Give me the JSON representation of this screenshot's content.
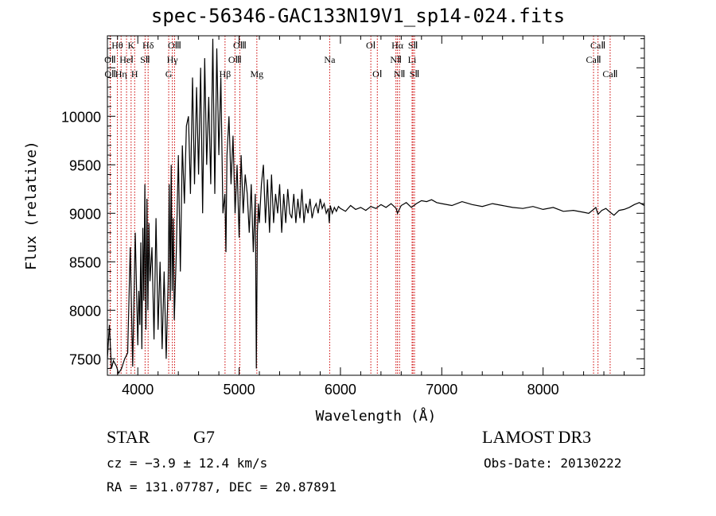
{
  "header": {
    "title": "spec-56346-GAC133N19V1_sp14-024.fits"
  },
  "info": {
    "object_type": "STAR",
    "subclass": "G7",
    "survey": "LAMOST DR3",
    "cz": "cz = −3.9 ± 12.4 km/s",
    "obs_date": "Obs-Date: 20130222",
    "radec": "RA = 131.07787, DEC =  20.87891"
  },
  "chart_data": {
    "type": "line",
    "title": "spec-56346-GAC133N19V1_sp14-024.fits",
    "xlabel": "Wavelength (Å)",
    "ylabel": "Flux (relative)",
    "xlim": [
      3700,
      9000
    ],
    "ylim": [
      7330,
      10830
    ],
    "xticks": [
      4000,
      5000,
      6000,
      7000,
      8000
    ],
    "yticks": [
      7500,
      8000,
      8500,
      9000,
      9500,
      10000
    ],
    "line_color": "#000000",
    "marker_color": "#cc0000",
    "series": [
      {
        "name": "flux",
        "x": [
          3700,
          3720,
          3740,
          3760,
          3790,
          3810,
          3840,
          3870,
          3900,
          3925,
          3950,
          3975,
          4000,
          4010,
          4020,
          4030,
          4040,
          4050,
          4060,
          4070,
          4080,
          4090,
          4100,
          4110,
          4120,
          4140,
          4160,
          4180,
          4200,
          4220,
          4240,
          4260,
          4280,
          4300,
          4310,
          4320,
          4330,
          4340,
          4350,
          4360,
          4380,
          4400,
          4420,
          4440,
          4460,
          4480,
          4500,
          4520,
          4540,
          4560,
          4580,
          4600,
          4620,
          4640,
          4660,
          4680,
          4700,
          4720,
          4740,
          4760,
          4780,
          4800,
          4820,
          4840,
          4860,
          4870,
          4880,
          4900,
          4920,
          4940,
          4960,
          4980,
          5000,
          5020,
          5040,
          5060,
          5080,
          5100,
          5120,
          5140,
          5160,
          5170,
          5180,
          5190,
          5200,
          5220,
          5240,
          5260,
          5280,
          5300,
          5320,
          5340,
          5360,
          5380,
          5400,
          5420,
          5440,
          5460,
          5480,
          5500,
          5520,
          5540,
          5560,
          5580,
          5600,
          5620,
          5640,
          5660,
          5680,
          5700,
          5720,
          5740,
          5760,
          5780,
          5800,
          5820,
          5840,
          5860,
          5880,
          5890,
          5900,
          5920,
          5940,
          5960,
          5980,
          6000,
          6050,
          6100,
          6150,
          6200,
          6250,
          6300,
          6350,
          6400,
          6450,
          6500,
          6550,
          6563,
          6600,
          6650,
          6700,
          6750,
          6800,
          6850,
          6900,
          6950,
          7000,
          7100,
          7200,
          7300,
          7400,
          7500,
          7600,
          7700,
          7800,
          7900,
          8000,
          8100,
          8200,
          8300,
          8400,
          8450,
          8498,
          8520,
          8542,
          8580,
          8620,
          8662,
          8700,
          8750,
          8800,
          8850,
          8900,
          8950,
          9000
        ],
        "y": [
          7500,
          7850,
          7400,
          7480,
          7420,
          7350,
          7400,
          7500,
          7560,
          8650,
          7420,
          8800,
          7640,
          8200,
          7850,
          8700,
          7600,
          8850,
          8100,
          9300,
          7800,
          9150,
          8000,
          8900,
          8300,
          8650,
          7700,
          8950,
          7800,
          8500,
          7600,
          8400,
          7500,
          8300,
          9300,
          8100,
          9500,
          8200,
          8950,
          7900,
          8600,
          9600,
          8400,
          9700,
          9100,
          9900,
          10000,
          9200,
          10400,
          9300,
          10300,
          9400,
          10500,
          9000,
          10600,
          9500,
          10200,
          9300,
          10800,
          9200,
          10700,
          9600,
          10400,
          9000,
          9200,
          8600,
          9600,
          10000,
          9300,
          9800,
          9000,
          9500,
          8750,
          9600,
          9000,
          9400,
          9200,
          8800,
          9300,
          8600,
          9200,
          7400,
          8800,
          9100,
          8900,
          9300,
          9500,
          8900,
          9350,
          8800,
          9400,
          8900,
          9200,
          9000,
          9300,
          8800,
          9200,
          8900,
          9250,
          9000,
          8950,
          9200,
          8900,
          9150,
          8950,
          9250,
          8900,
          9100,
          9000,
          9150,
          8950,
          9050,
          9100,
          9000,
          9150,
          9050,
          9100,
          9000,
          9050,
          8900,
          9080,
          9000,
          9060,
          9020,
          9070,
          9050,
          9020,
          9080,
          9040,
          9060,
          9030,
          9070,
          9050,
          9090,
          9060,
          9100,
          9050,
          9000,
          9080,
          9110,
          9060,
          9100,
          9130,
          9120,
          9140,
          9110,
          9100,
          9080,
          9120,
          9090,
          9070,
          9100,
          9080,
          9060,
          9050,
          9070,
          9040,
          9060,
          9020,
          9030,
          9010,
          9000,
          9040,
          9060,
          8990,
          9030,
          9050,
          9010,
          8980,
          9030,
          9040,
          9060,
          9090,
          9110,
          9080
        ]
      }
    ],
    "lines": [
      {
        "name": "OⅡ",
        "wl": 3727,
        "row": 1
      },
      {
        "name": "OⅡ",
        "wl": 3729,
        "row": 2
      },
      {
        "name": "Hθ",
        "wl": 3798,
        "row": 0
      },
      {
        "name": "Hη",
        "wl": 3835,
        "row": 2
      },
      {
        "name": "HeⅠ",
        "wl": 3889,
        "row": 1
      },
      {
        "name": "K",
        "wl": 3934,
        "row": 0
      },
      {
        "name": "H",
        "wl": 3969,
        "row": 2
      },
      {
        "name": "SⅡ",
        "wl": 4072,
        "row": 1
      },
      {
        "name": "Hδ",
        "wl": 4102,
        "row": 0
      },
      {
        "name": "G",
        "wl": 4305,
        "row": 2
      },
      {
        "name": "Hγ",
        "wl": 4341,
        "row": 1
      },
      {
        "name": "OⅢ",
        "wl": 4363,
        "row": 0
      },
      {
        "name": "Hβ",
        "wl": 4861,
        "row": 2
      },
      {
        "name": "OⅢ",
        "wl": 4959,
        "row": 1
      },
      {
        "name": "OⅢ",
        "wl": 5007,
        "row": 0
      },
      {
        "name": "Mg",
        "wl": 5175,
        "row": 2
      },
      {
        "name": "Na",
        "wl": 5894,
        "row": 1
      },
      {
        "name": "OⅠ",
        "wl": 6300,
        "row": 0
      },
      {
        "name": "OⅠ",
        "wl": 6364,
        "row": 2
      },
      {
        "name": "NⅡ",
        "wl": 6548,
        "row": 1
      },
      {
        "name": "Hα",
        "wl": 6563,
        "row": 0
      },
      {
        "name": "NⅡ",
        "wl": 6583,
        "row": 2
      },
      {
        "name": "Li",
        "wl": 6707,
        "row": 1
      },
      {
        "name": "SⅡ",
        "wl": 6716,
        "row": 0
      },
      {
        "name": "SⅡ",
        "wl": 6731,
        "row": 2
      },
      {
        "name": "CaⅡ",
        "wl": 8498,
        "row": 1
      },
      {
        "name": "CaⅡ",
        "wl": 8542,
        "row": 0
      },
      {
        "name": "CaⅡ",
        "wl": 8662,
        "row": 2
      }
    ]
  }
}
